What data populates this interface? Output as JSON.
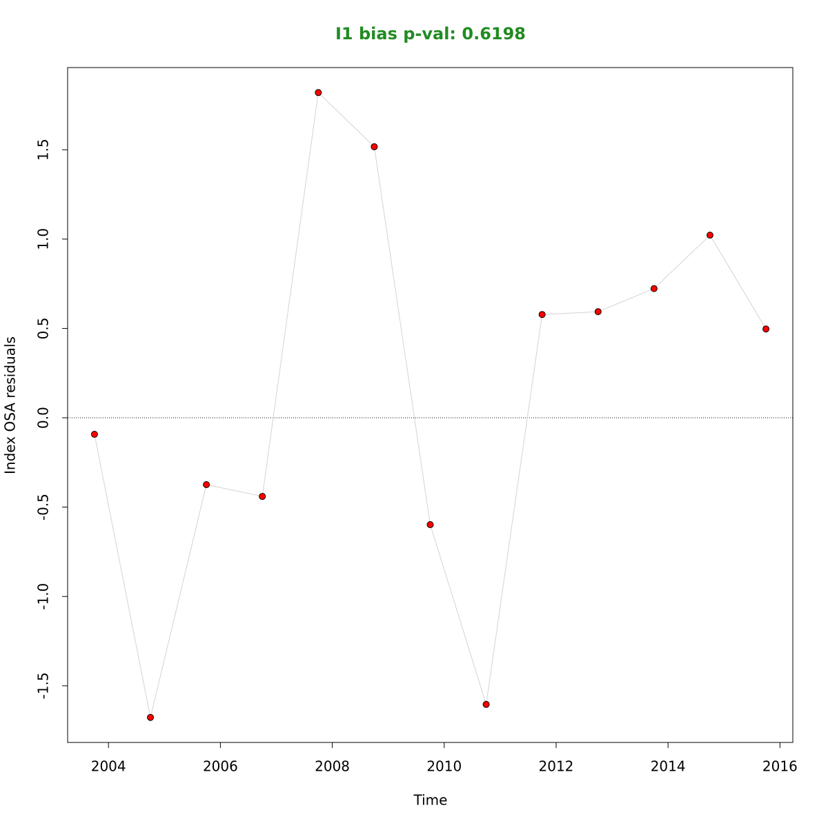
{
  "chart_data": {
    "type": "line",
    "title": "I1 bias p-val: 0.6198",
    "title_color": "#228b22",
    "x_label": "Time",
    "y_label": "Index OSA residuals",
    "x": [
      2003.75,
      2004.75,
      2005.75,
      2006.75,
      2007.75,
      2008.75,
      2009.75,
      2010.75,
      2011.75,
      2012.75,
      2013.75,
      2014.75,
      2015.75
    ],
    "series": [
      {
        "name": "I1",
        "color": "#ff0000",
        "line_color": "#d3d3d3",
        "values": [
          -0.0925,
          -1.677,
          -0.374,
          -0.44,
          1.82,
          1.517,
          -0.598,
          -1.604,
          0.578,
          0.594,
          0.723,
          1.022,
          0.497
        ]
      }
    ],
    "reference_line": 0,
    "xlim": [
      2003.27,
      2016.23
    ],
    "ylim": [
      -1.817,
      1.96
    ],
    "xticks": [
      2004,
      2006,
      2008,
      2010,
      2012,
      2014,
      2016
    ],
    "yticks": [
      -1.5,
      {
        "value": -1,
        "label": "-1.0"
      },
      -0.5,
      {
        "value": 0,
        "label": "0.0"
      },
      0.5,
      {
        "value": 1,
        "label": "1.0"
      },
      1.5
    ],
    "grid": false
  }
}
